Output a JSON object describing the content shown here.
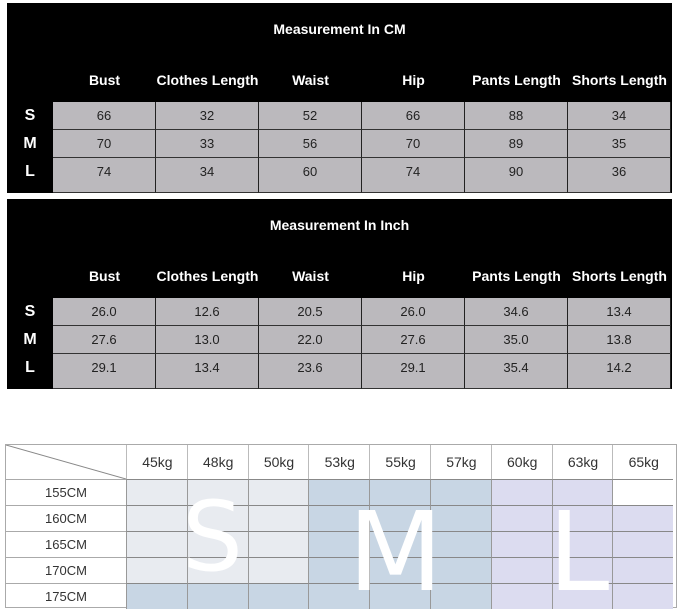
{
  "cm_table": {
    "title": "Measurement In CM",
    "headers": [
      "Bust",
      "Clothes Length",
      "Waist",
      "Hip",
      "Pants Length",
      "Shorts Length"
    ],
    "rows": [
      {
        "size": "S",
        "values": [
          "66",
          "32",
          "52",
          "66",
          "88",
          "34"
        ]
      },
      {
        "size": "M",
        "values": [
          "70",
          "33",
          "56",
          "70",
          "89",
          "35"
        ]
      },
      {
        "size": "L",
        "values": [
          "74",
          "34",
          "60",
          "74",
          "90",
          "36"
        ]
      }
    ]
  },
  "inch_table": {
    "title": "Measurement In Inch",
    "headers": [
      "Bust",
      "Clothes Length",
      "Waist",
      "Hip",
      "Pants Length",
      "Shorts Length"
    ],
    "rows": [
      {
        "size": "S",
        "values": [
          "26.0",
          "12.6",
          "20.5",
          "26.0",
          "34.6",
          "13.4"
        ]
      },
      {
        "size": "M",
        "values": [
          "27.6",
          "13.0",
          "22.0",
          "27.6",
          "35.0",
          "13.8"
        ]
      },
      {
        "size": "L",
        "values": [
          "29.1",
          "13.4",
          "23.6",
          "29.1",
          "35.4",
          "14.2"
        ]
      }
    ]
  },
  "weight_table": {
    "weights": [
      "45kg",
      "48kg",
      "50kg",
      "53kg",
      "55kg",
      "57kg",
      "60kg",
      "63kg",
      "65kg"
    ],
    "heights": [
      "155CM",
      "160CM",
      "165CM",
      "170CM",
      "175CM"
    ],
    "size_letters": [
      "S",
      "M",
      "L"
    ],
    "grid": [
      [
        "S",
        "S",
        "S",
        "M",
        "M",
        "M",
        "L",
        "L",
        ""
      ],
      [
        "S",
        "S",
        "S",
        "M",
        "M",
        "M",
        "L",
        "L",
        "L"
      ],
      [
        "S",
        "S",
        "S",
        "M",
        "M",
        "M",
        "L",
        "L",
        "L"
      ],
      [
        "S",
        "S",
        "S",
        "M",
        "M",
        "M",
        "L",
        "L",
        "L"
      ],
      [
        "M",
        "M",
        "M",
        "M",
        "M",
        "M",
        "L",
        "L",
        "L"
      ]
    ],
    "colors": {
      "S": "#e8ebf0",
      "M": "#c8d6e4",
      "L": "#dcdcf0",
      "": "#ffffff"
    }
  }
}
